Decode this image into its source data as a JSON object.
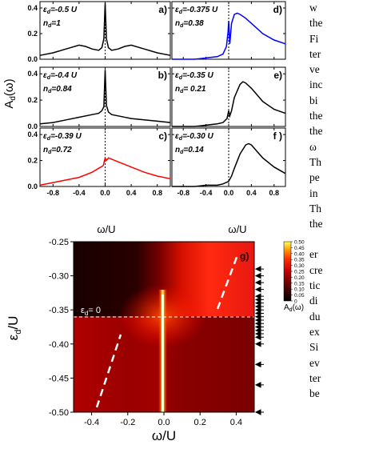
{
  "figure": {
    "shared_ylabel": "A",
    "shared_ylabel_sub": "d",
    "shared_ylabel_tail": "(ω)",
    "xlabel_top": "ω/U",
    "xlabel_g": "ω/U",
    "ylabel_g": "ε",
    "ylabel_g_sub": "d",
    "ylabel_g_tail": "/U",
    "eps_line_label": "ε",
    "eps_line_sub": "d",
    "eps_line_tail": "= 0",
    "colorbar_title": "A",
    "colorbar_title_sub": "d",
    "colorbar_title_tail": "(ω)",
    "colorbar_ticks": [
      "0",
      "0.05",
      "0.10",
      "0.15",
      "0.20",
      "0.25",
      "0.30",
      "0.35",
      "0.40",
      "0.45",
      "0.50"
    ],
    "colors": {
      "panel_c": "#ff0000",
      "panel_d": "#0000ff",
      "default": "#000000",
      "dashed_white": "#ffffff"
    }
  },
  "chart_data": [
    {
      "type": "line",
      "panel": "a)",
      "eps": "ε",
      "eps_sub": "d",
      "eps_val": "=-0.5 U",
      "n": "n",
      "n_sub": "d",
      "n_val": "=1",
      "xlim": [
        -1,
        1
      ],
      "ylim": [
        0,
        0.45
      ],
      "xticks": [
        "-0.8",
        "-0.4",
        "0.0",
        "0.4",
        "0.8"
      ],
      "yticks": [
        "0.0",
        "0.2",
        "0.4"
      ],
      "series": [
        {
          "color": "#000000",
          "x": [
            -1.0,
            -0.8,
            -0.6,
            -0.4,
            -0.3,
            -0.2,
            -0.1,
            -0.05,
            -0.02,
            0.0,
            0.02,
            0.05,
            0.1,
            0.2,
            0.3,
            0.4,
            0.6,
            0.8,
            1.0
          ],
          "y": [
            0.03,
            0.05,
            0.08,
            0.11,
            0.1,
            0.08,
            0.07,
            0.09,
            0.16,
            0.44,
            0.16,
            0.09,
            0.07,
            0.08,
            0.1,
            0.11,
            0.08,
            0.05,
            0.03
          ]
        }
      ]
    },
    {
      "type": "line",
      "panel": "b)",
      "eps": "ε",
      "eps_sub": "d",
      "eps_val": "=-0.4 U",
      "n": "n",
      "n_sub": "d",
      "n_val": "=0.84",
      "xlim": [
        -1,
        1
      ],
      "ylim": [
        0,
        0.45
      ],
      "xticks": [
        "-0.8",
        "-0.4",
        "0.0",
        "0.4",
        "0.8"
      ],
      "yticks": [
        "0.0",
        "0.2",
        "0.4"
      ],
      "series": [
        {
          "color": "#000000",
          "x": [
            -1.0,
            -0.8,
            -0.6,
            -0.4,
            -0.2,
            -0.1,
            -0.05,
            -0.02,
            0.0,
            0.02,
            0.05,
            0.1,
            0.2,
            0.4,
            0.6,
            0.8,
            1.0
          ],
          "y": [
            0.02,
            0.03,
            0.05,
            0.07,
            0.09,
            0.1,
            0.12,
            0.15,
            0.43,
            0.16,
            0.11,
            0.09,
            0.08,
            0.06,
            0.05,
            0.04,
            0.03
          ]
        }
      ]
    },
    {
      "type": "line",
      "panel": "c)",
      "eps": "ε",
      "eps_sub": "d",
      "eps_val": "=-0.39 U",
      "n": "n",
      "n_sub": "d",
      "n_val": "=0.72",
      "xlim": [
        -1,
        1
      ],
      "ylim": [
        0,
        0.45
      ],
      "xticks": [
        "-0.8",
        "-0.4",
        "0.0",
        "0.4",
        "0.8"
      ],
      "yticks": [
        "0.0",
        "0.2",
        "0.4"
      ],
      "series": [
        {
          "color": "#ff0000",
          "x": [
            -1.0,
            -0.8,
            -0.6,
            -0.4,
            -0.2,
            -0.1,
            -0.03,
            0.0,
            0.02,
            0.05,
            0.1,
            0.2,
            0.3,
            0.4,
            0.6,
            0.8,
            1.0
          ],
          "y": [
            0.01,
            0.03,
            0.05,
            0.07,
            0.11,
            0.14,
            0.16,
            0.22,
            0.2,
            0.22,
            0.21,
            0.19,
            0.17,
            0.15,
            0.11,
            0.08,
            0.06
          ]
        }
      ]
    },
    {
      "type": "line",
      "panel": "d)",
      "eps": "ε",
      "eps_sub": "d",
      "eps_val": "=-0.375 U",
      "n": "n",
      "n_sub": "d",
      "n_val": "=0.38",
      "xlim": [
        -1,
        1
      ],
      "ylim": [
        0,
        0.45
      ],
      "xticks": [
        "-0.8",
        "-0.4",
        "0.0",
        "0.4",
        "0.8"
      ],
      "yticks": [],
      "series": [
        {
          "color": "#0000ff",
          "x": [
            -1.0,
            -0.6,
            -0.4,
            -0.2,
            -0.1,
            -0.04,
            -0.01,
            0.0,
            0.02,
            0.05,
            0.1,
            0.15,
            0.2,
            0.3,
            0.4,
            0.5,
            0.6,
            0.8,
            1.0
          ],
          "y": [
            0.0,
            0.0,
            0.01,
            0.02,
            0.04,
            0.1,
            0.22,
            0.3,
            0.12,
            0.28,
            0.35,
            0.36,
            0.35,
            0.32,
            0.28,
            0.24,
            0.2,
            0.15,
            0.12
          ]
        }
      ]
    },
    {
      "type": "line",
      "panel": "e)",
      "eps": "ε",
      "eps_sub": "d",
      "eps_val": "=-0.35 U",
      "n": "n",
      "n_sub": "d",
      "n_val": "= 0.21",
      "xlim": [
        -1,
        1
      ],
      "ylim": [
        0,
        0.45
      ],
      "xticks": [
        "-0.8",
        "-0.4",
        "0.0",
        "0.4",
        "0.8"
      ],
      "yticks": [],
      "series": [
        {
          "color": "#000000",
          "x": [
            -1.0,
            -0.6,
            -0.4,
            -0.2,
            -0.1,
            -0.03,
            0.0,
            0.02,
            0.05,
            0.1,
            0.2,
            0.25,
            0.3,
            0.4,
            0.5,
            0.6,
            0.8,
            1.0
          ],
          "y": [
            0.0,
            0.0,
            0.01,
            0.02,
            0.03,
            0.06,
            0.12,
            0.08,
            0.12,
            0.22,
            0.32,
            0.34,
            0.33,
            0.29,
            0.24,
            0.19,
            0.13,
            0.1
          ]
        }
      ]
    },
    {
      "type": "line",
      "panel": "f )",
      "eps": "ε",
      "eps_sub": "d",
      "eps_val": "=-0.30 U",
      "n": "n",
      "n_sub": "d",
      "n_val": "=0.14",
      "xlim": [
        -1,
        1
      ],
      "ylim": [
        0,
        0.45
      ],
      "xticks": [
        "-0.8",
        "-0.4",
        "0.0",
        "0.4",
        "0.8"
      ],
      "yticks": [],
      "series": [
        {
          "color": "#000000",
          "x": [
            -1.0,
            -0.6,
            -0.4,
            -0.2,
            -0.1,
            0.0,
            0.05,
            0.1,
            0.2,
            0.3,
            0.35,
            0.4,
            0.5,
            0.6,
            0.8,
            1.0
          ],
          "y": [
            0.0,
            0.0,
            0.01,
            0.01,
            0.02,
            0.04,
            0.08,
            0.14,
            0.25,
            0.32,
            0.33,
            0.32,
            0.27,
            0.22,
            0.15,
            0.1
          ]
        }
      ]
    },
    {
      "type": "heatmap",
      "panel": "g)",
      "xlim": [
        -0.5,
        0.5
      ],
      "ylim": [
        -0.5,
        -0.25
      ],
      "xticks": [
        "-0.4",
        "-0.2",
        "0.0",
        "0.2",
        "0.4"
      ],
      "yticks": [
        "-0.25",
        "-0.30",
        "-0.35",
        "-0.40",
        "-0.45",
        "-0.50"
      ],
      "colorbar_range": [
        0,
        0.5
      ],
      "eps_zero_line_y": -0.375,
      "arrow_ticks_eps": [
        -0.5,
        -0.46,
        -0.43,
        -0.4,
        -0.39,
        -0.385,
        -0.38,
        -0.375,
        -0.37,
        -0.365,
        -0.36,
        -0.355,
        -0.35,
        -0.345,
        -0.34,
        -0.335,
        -0.33,
        -0.32,
        -0.31,
        -0.3,
        -0.29
      ]
    }
  ],
  "text": {
    "lines_top": [
      "w",
      "the",
      "Fi",
      "ter",
      "ve",
      "inc",
      "bi",
      "the",
      "the",
      "ω",
      "Th",
      "pe",
      "in",
      "Th",
      "the"
    ],
    "lines_bottom": [
      "er",
      "cre",
      "tic",
      "di",
      "du",
      "ex",
      "Si",
      "ev",
      "ter",
      "be"
    ]
  }
}
